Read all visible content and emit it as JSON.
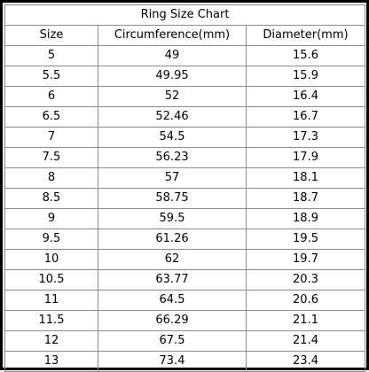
{
  "chart": {
    "title": "Ring Size Chart",
    "headers": [
      "Size",
      "Circumference(mm)",
      "Diameter(mm)"
    ],
    "rows": [
      [
        "5",
        "49",
        "15.6"
      ],
      [
        "5.5",
        "49.95",
        "15.9"
      ],
      [
        "6",
        "52",
        "16.4"
      ],
      [
        "6.5",
        "52.46",
        "16.7"
      ],
      [
        "7",
        "54.5",
        "17.3"
      ],
      [
        "7.5",
        "56.23",
        "17.9"
      ],
      [
        "8",
        "57",
        "18.1"
      ],
      [
        "8.5",
        "58.75",
        "18.7"
      ],
      [
        "9",
        "59.5",
        "18.9"
      ],
      [
        "9.5",
        "61.26",
        "19.5"
      ],
      [
        "10",
        "62",
        "19.7"
      ],
      [
        "10.5",
        "63.77",
        "20.3"
      ],
      [
        "11",
        "64.5",
        "20.6"
      ],
      [
        "11.5",
        "66.29",
        "21.1"
      ],
      [
        "12",
        "67.5",
        "21.4"
      ],
      [
        "13",
        "73.4",
        "23.4"
      ]
    ]
  },
  "colors": {
    "border": "#000000",
    "grid": "#8a8a8a",
    "text": "#000000",
    "background": "#ffffff"
  }
}
